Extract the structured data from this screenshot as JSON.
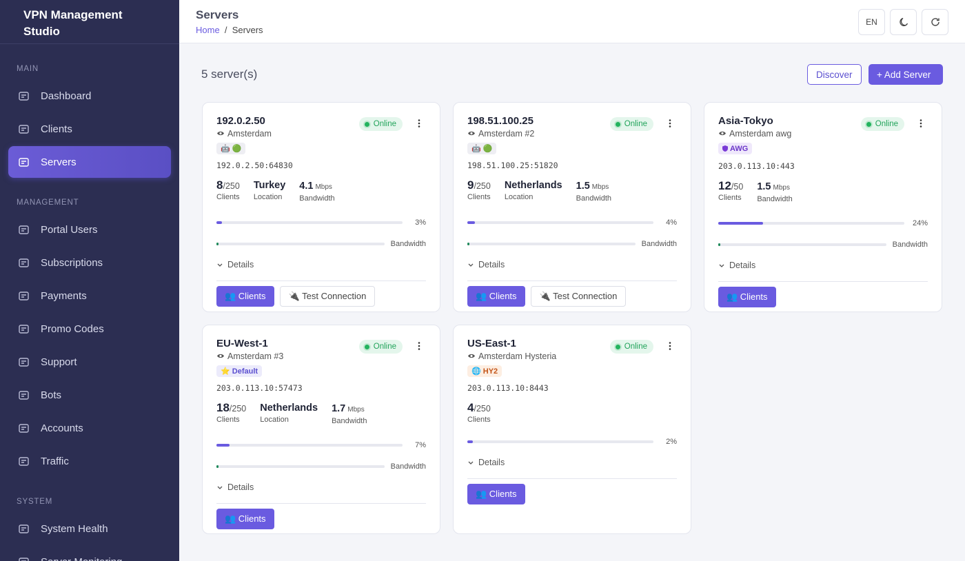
{
  "sidebar": {
    "brand": "VPN Management Studio",
    "sections": [
      {
        "title": "MAIN",
        "items": [
          {
            "label": "Dashboard"
          },
          {
            "label": "Clients"
          },
          {
            "label": "Servers",
            "active": true
          }
        ]
      },
      {
        "title": "MANAGEMENT",
        "items": [
          {
            "label": "Portal Users"
          },
          {
            "label": "Subscriptions"
          },
          {
            "label": "Payments"
          },
          {
            "label": "Promo Codes"
          },
          {
            "label": "Support"
          },
          {
            "label": "Bots"
          },
          {
            "label": "Accounts"
          },
          {
            "label": "Traffic"
          }
        ]
      },
      {
        "title": "SYSTEM",
        "items": [
          {
            "label": "System Health"
          },
          {
            "label": "Server Monitoring"
          }
        ]
      }
    ]
  },
  "header": {
    "title": "Servers",
    "breadcrumb": [
      "Home",
      "Servers"
    ],
    "language": "EN"
  },
  "toolbar": {
    "count": "5 server(s)",
    "discover": "Discover",
    "add": "+ Add Server"
  },
  "labels": {
    "clients": "Clients",
    "location": "Location",
    "bandwidth": "Bandwidth",
    "details": "Details",
    "unit": "Mbps",
    "clients_button": "👥 Clients",
    "test_button": "🔌 Test Connection"
  },
  "servers": [
    {
      "name": "192.0.2.50",
      "status": "Online",
      "location": "Amsterdam",
      "badge": {
        "text": "🤖 🟢",
        "style": "plain"
      },
      "address": "192.0.2.50:64830",
      "clients": "8",
      "capacity": "/250",
      "country": "Turkey",
      "bandwidth": "4.1",
      "load": {
        "value": 3,
        "label": "3%"
      },
      "test": true
    },
    {
      "name": "198.51.100.25",
      "status": "Online",
      "location": "Amsterdam #2",
      "badge": {
        "text": "🤖 🟢",
        "style": "plain"
      },
      "address": "198.51.100.25:51820",
      "clients": "9",
      "capacity": "/250",
      "country": "Netherlands",
      "bandwidth": "1.5",
      "load": {
        "value": 4,
        "label": "4%"
      },
      "test": true
    },
    {
      "name": "Asia-Tokyo",
      "status": "Online",
      "location": "Amsterdam awg",
      "badge": {
        "text": "AWG",
        "style": "awg"
      },
      "address": "203.0.113.10:443",
      "clients": "12",
      "capacity": "/50",
      "bandwidth": "1.5",
      "load": {
        "value": 24,
        "label": "24%"
      }
    },
    {
      "name": "EU-West-1",
      "status": "Online",
      "location": "Amsterdam #3",
      "badge": {
        "text": "⭐ Default",
        "style": "default"
      },
      "address": "203.0.113.10:57473",
      "clients": "18",
      "capacity": "/250",
      "country": "Netherlands",
      "bandwidth": "1.7",
      "load": {
        "value": 7,
        "label": "7%"
      }
    },
    {
      "name": "US-East-1",
      "status": "Online",
      "location": "Amsterdam Hysteria",
      "badge": {
        "text": "🌐 HY2",
        "style": "hy2"
      },
      "address": "203.0.113.10:8443",
      "clients": "4",
      "capacity": "/250",
      "load": {
        "value": 2,
        "label": "2%"
      }
    }
  ]
}
